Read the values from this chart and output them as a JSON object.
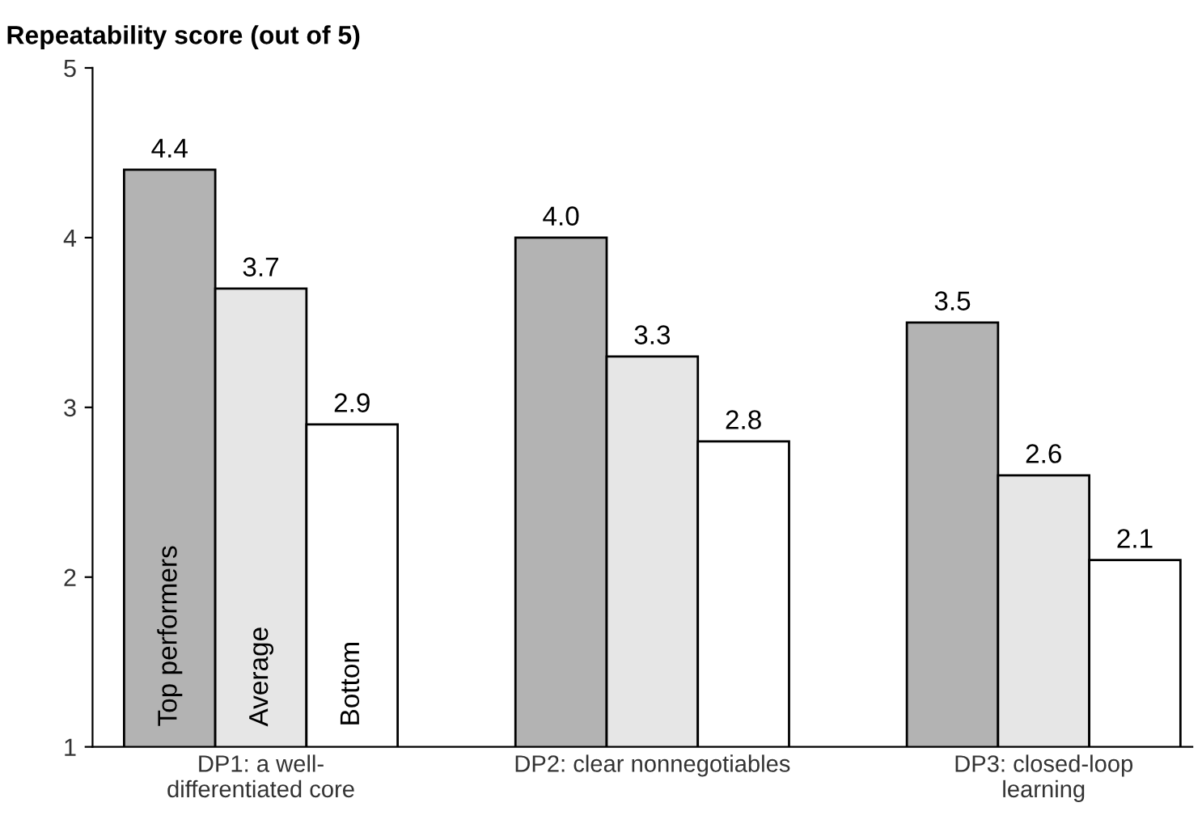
{
  "chart_data": {
    "type": "bar",
    "title": "Repeatability score (out of 5)",
    "categories": [
      "DP1: a well-\ndifferentiated core",
      "DP2: clear nonnegotiables",
      "DP3: closed-loop\nlearning"
    ],
    "series": [
      {
        "name": "Top performers",
        "color": "#b3b3b3",
        "values": [
          4.4,
          4.0,
          3.5
        ],
        "value_labels": [
          "4.4",
          "4.0",
          "3.5"
        ]
      },
      {
        "name": "Average",
        "color": "#e6e6e6",
        "values": [
          3.7,
          3.3,
          2.6
        ],
        "value_labels": [
          "3.7",
          "3.3",
          "2.6"
        ]
      },
      {
        "name": "Bottom",
        "color": "#ffffff",
        "values": [
          2.9,
          2.8,
          2.1
        ],
        "value_labels": [
          "2.9",
          "2.8",
          "2.1"
        ]
      }
    ],
    "ylim": [
      1,
      5
    ],
    "yticks": [
      1,
      2,
      3,
      4,
      5
    ],
    "grid": false,
    "legend": false
  }
}
